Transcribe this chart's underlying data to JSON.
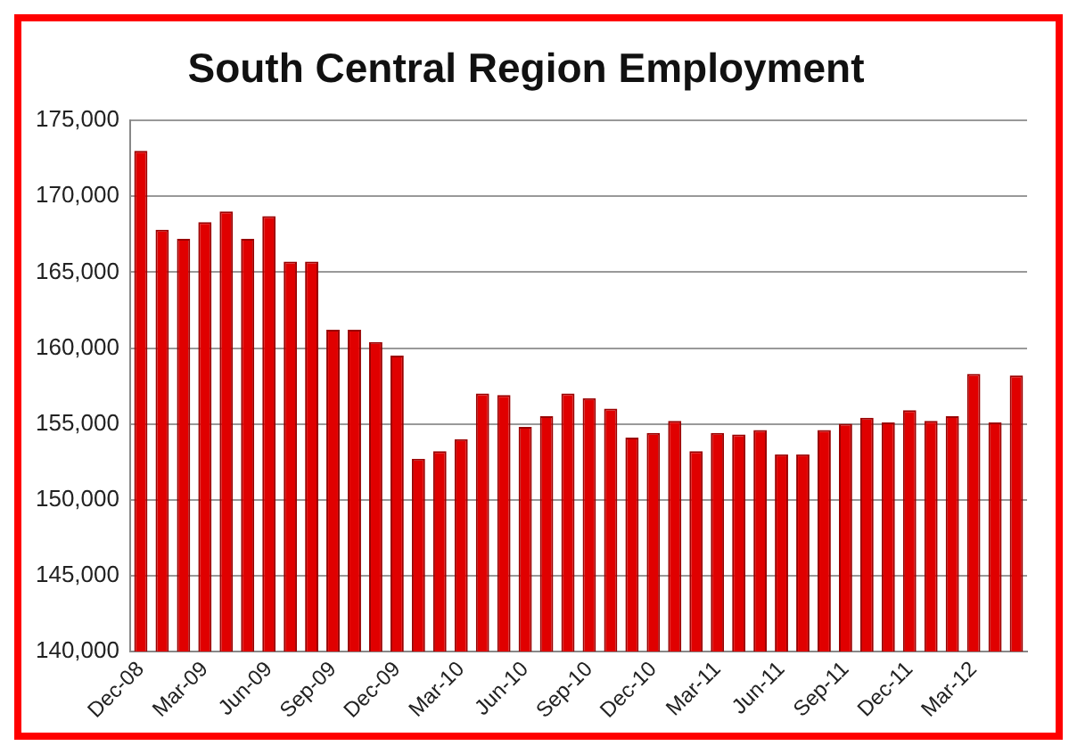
{
  "chart_data": {
    "type": "bar",
    "title": "South Central Region Employment",
    "categories": [
      "Dec-08",
      null,
      null,
      "Mar-09",
      null,
      null,
      "Jun-09",
      null,
      null,
      "Sep-09",
      null,
      null,
      "Dec-09",
      null,
      null,
      "Mar-10",
      null,
      null,
      "Jun-10",
      null,
      null,
      "Sep-10",
      null,
      null,
      "Dec-10",
      null,
      null,
      "Mar-11",
      null,
      null,
      "Jun-11",
      null,
      null,
      "Sep-11",
      null,
      null,
      "Dec-11",
      null,
      null,
      "Mar-12",
      null,
      null
    ],
    "series": [
      {
        "color": "#e00000",
        "values": [
          173000,
          167800,
          167200,
          168300,
          169000,
          167200,
          168700,
          165700,
          165700,
          161200,
          161200,
          160400,
          159500,
          152700,
          153200,
          154000,
          157000,
          156900,
          154800,
          155500,
          157000,
          156700,
          156000,
          154100,
          154400,
          155200,
          153200,
          154400,
          154300,
          154600,
          153000,
          153000,
          154600,
          155000,
          155400,
          155100,
          155900,
          155200,
          155500,
          158300,
          155100,
          158200
        ]
      }
    ],
    "ylim": [
      140000,
      175000
    ],
    "yticks": [
      {
        "value": 140000,
        "label": "140,000"
      },
      {
        "value": 145000,
        "label": "145,000"
      },
      {
        "value": 150000,
        "label": "150,000"
      },
      {
        "value": 155000,
        "label": "155,000"
      },
      {
        "value": 160000,
        "label": "160,000"
      },
      {
        "value": 165000,
        "label": "165,000"
      },
      {
        "value": 170000,
        "label": "170,000"
      },
      {
        "value": 175000,
        "label": "175,000"
      }
    ],
    "grid": "y",
    "legend": false
  }
}
